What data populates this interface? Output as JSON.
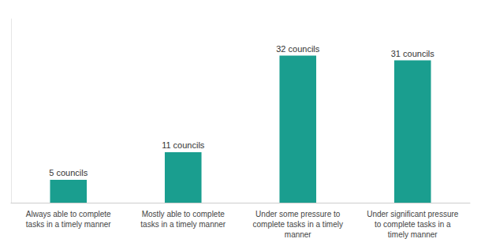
{
  "chart_data": {
    "type": "bar",
    "categories": [
      "Always able to complete\ntasks in a timely manner",
      "Mostly able to complete\ntasks in a timely manner",
      "Under some pressure to\ncomplete tasks in a timely\nmanner",
      "Under significant pressure\nto complete tasks in a\ntimely manner"
    ],
    "values": [
      5,
      11,
      32,
      31
    ],
    "value_labels": [
      "5 councils",
      "11 councils",
      "32 councils",
      "31 councils"
    ],
    "data_labels": true,
    "color": "#1a9e8f",
    "ylim": [
      0,
      40
    ],
    "grid": false,
    "tick_labels": "x"
  }
}
